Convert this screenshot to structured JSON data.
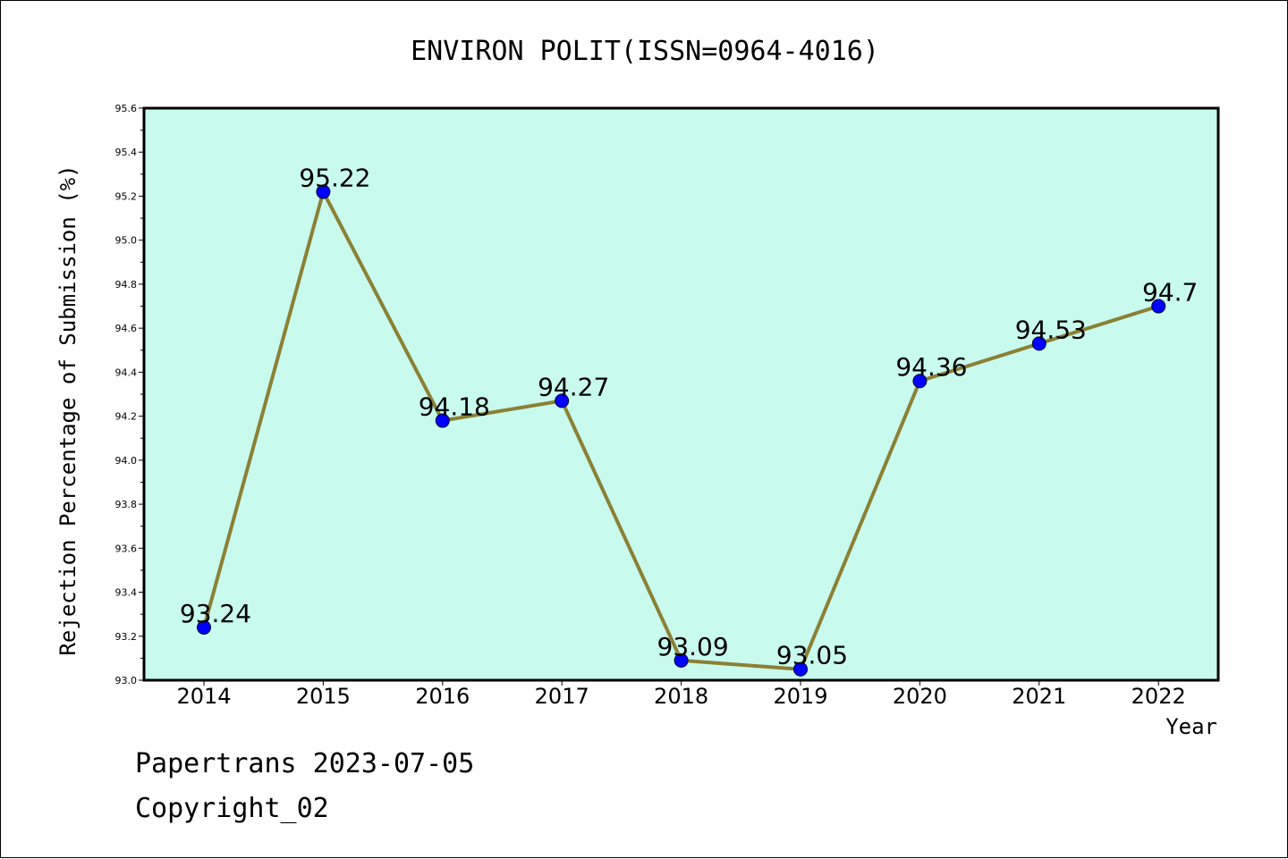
{
  "chart_data": {
    "type": "line",
    "title": "ENVIRON POLIT(ISSN=0964-4016)",
    "xlabel": "Year",
    "ylabel": "Rejection Percentage of Submission (%)",
    "categories": [
      "2014",
      "2015",
      "2016",
      "2017",
      "2018",
      "2019",
      "2020",
      "2021",
      "2022"
    ],
    "values": [
      93.24,
      95.22,
      94.18,
      94.27,
      93.09,
      93.05,
      94.36,
      94.53,
      94.7
    ],
    "value_labels": [
      "93.24",
      "95.22",
      "94.18",
      "94.27",
      "93.09",
      "93.05",
      "94.36",
      "94.53",
      "94.7"
    ],
    "ylim": [
      93.0,
      95.6
    ],
    "yticks": [
      "93.0",
      "93.2",
      "93.4",
      "93.6",
      "93.8",
      "94.0",
      "94.2",
      "94.4",
      "94.6",
      "94.8",
      "95.0",
      "95.2",
      "95.4",
      "95.6"
    ],
    "grid": false,
    "colors": {
      "plot_background": "#c8fbee",
      "line": "#8b8035",
      "marker": "#0000ff"
    }
  },
  "footer": {
    "line1": "Papertrans 2023-07-05",
    "line2": "Copyright_02"
  }
}
